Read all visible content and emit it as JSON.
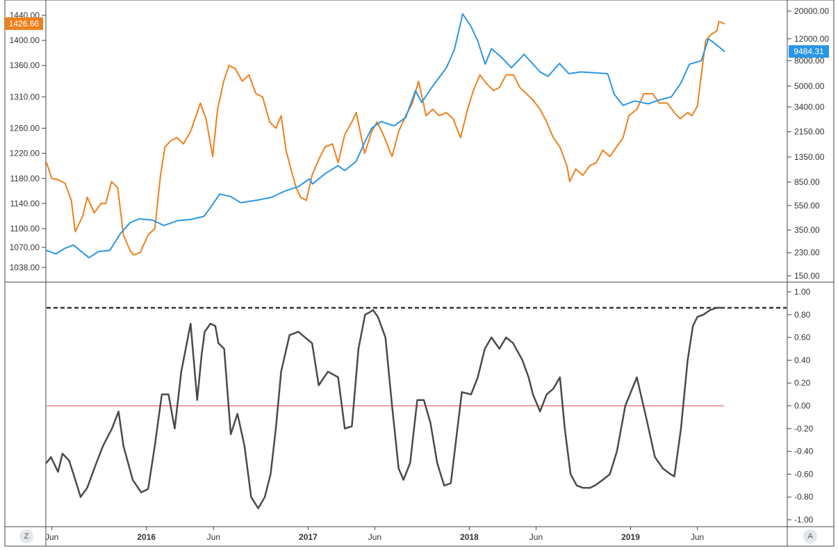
{
  "colors": {
    "gold": "#ef7f1a",
    "btc": "#2a96e6",
    "correlation": "#4a4a4a",
    "zero_line": "#f08080",
    "grid_border": "#444444"
  },
  "chart_data": [
    {
      "type": "line",
      "name": "price-panel",
      "x_axis": {
        "ticks": [
          "Jun",
          "2016",
          "Jun",
          "2017",
          "Jun",
          "2018",
          "Jun",
          "2019",
          "Jun"
        ],
        "tick_dates": [
          "2015-06-01",
          "2016-01-01",
          "2016-06-01",
          "2017-01-01",
          "2017-06-01",
          "2018-01-01",
          "2018-06-01",
          "2019-01-01",
          "2019-06-01"
        ],
        "range": [
          "2015-05-20",
          "2019-12-20"
        ]
      },
      "left_axis": {
        "ticks": [
          "1038.00",
          "1070.00",
          "1100.00",
          "1140.00",
          "1180.00",
          "1220.00",
          "1260.00",
          "1310.00",
          "1360.00",
          "1400.00",
          "1440.00"
        ],
        "tick_values": [
          1038,
          1070,
          1100,
          1140,
          1180,
          1220,
          1260,
          1310,
          1360,
          1400,
          1440
        ],
        "last_value_label": "1426.66"
      },
      "right_axis": {
        "scale": "log",
        "ticks": [
          "150.00",
          "230.00",
          "350.00",
          "550.00",
          "850.00",
          "1350.00",
          "2150.00",
          "3400.00",
          "5000.00",
          "8000.00",
          "12000.00",
          "20000.00"
        ],
        "tick_values": [
          150,
          230,
          350,
          550,
          850,
          1350,
          2150,
          3400,
          5000,
          8000,
          12000,
          20000
        ],
        "last_value_label": "9484.31"
      },
      "series": [
        {
          "color": "#ef7f1a",
          "axis": "left",
          "x": [
            "2015-05-20",
            "2015-06-01",
            "2015-06-15",
            "2015-07-01",
            "2015-07-15",
            "2015-07-24",
            "2015-08-10",
            "2015-08-20",
            "2015-09-05",
            "2015-09-20",
            "2015-10-01",
            "2015-10-14",
            "2015-10-28",
            "2015-11-10",
            "2015-11-25",
            "2015-12-03",
            "2015-12-18",
            "2016-01-05",
            "2016-01-20",
            "2016-02-02",
            "2016-02-12",
            "2016-02-25",
            "2016-03-10",
            "2016-03-25",
            "2016-04-10",
            "2016-04-25",
            "2016-05-02",
            "2016-05-15",
            "2016-05-30",
            "2016-06-10",
            "2016-06-24",
            "2016-07-06",
            "2016-07-20",
            "2016-08-05",
            "2016-08-20",
            "2016-09-05",
            "2016-09-20",
            "2016-10-06",
            "2016-10-20",
            "2016-11-01",
            "2016-11-12",
            "2016-11-25",
            "2016-12-05",
            "2016-12-15",
            "2016-12-28",
            "2017-01-10",
            "2017-01-25",
            "2017-02-08",
            "2017-02-25",
            "2017-03-10",
            "2017-03-25",
            "2017-04-10",
            "2017-04-20",
            "2017-05-09",
            "2017-05-25",
            "2017-06-06",
            "2017-06-20",
            "2017-07-10",
            "2017-07-25",
            "2017-08-10",
            "2017-08-25",
            "2017-09-08",
            "2017-09-25",
            "2017-10-10",
            "2017-10-25",
            "2017-11-10",
            "2017-11-25",
            "2017-12-12",
            "2017-12-28",
            "2018-01-10",
            "2018-01-25",
            "2018-02-10",
            "2018-02-25",
            "2018-03-10",
            "2018-03-25",
            "2018-04-11",
            "2018-04-25",
            "2018-05-10",
            "2018-05-25",
            "2018-06-10",
            "2018-06-25",
            "2018-07-10",
            "2018-07-25",
            "2018-08-10",
            "2018-08-16",
            "2018-08-30",
            "2018-09-15",
            "2018-09-30",
            "2018-10-15",
            "2018-10-30",
            "2018-11-15",
            "2018-11-30",
            "2018-12-15",
            "2018-12-28",
            "2019-01-15",
            "2019-01-31",
            "2019-02-20",
            "2019-03-07",
            "2019-03-25",
            "2019-04-10",
            "2019-04-23",
            "2019-05-10",
            "2019-05-20",
            "2019-06-01",
            "2019-06-10",
            "2019-06-20",
            "2019-07-03",
            "2019-07-15",
            "2019-07-20",
            "2019-08-01"
          ],
          "y": [
            1205,
            1180,
            1178,
            1172,
            1145,
            1095,
            1120,
            1150,
            1125,
            1140,
            1140,
            1175,
            1165,
            1090,
            1065,
            1058,
            1062,
            1090,
            1100,
            1185,
            1230,
            1240,
            1245,
            1235,
            1255,
            1285,
            1300,
            1275,
            1215,
            1290,
            1335,
            1360,
            1355,
            1335,
            1345,
            1315,
            1310,
            1270,
            1260,
            1280,
            1225,
            1190,
            1165,
            1150,
            1145,
            1185,
            1210,
            1230,
            1235,
            1205,
            1250,
            1270,
            1285,
            1220,
            1255,
            1270,
            1250,
            1215,
            1255,
            1280,
            1300,
            1335,
            1280,
            1290,
            1280,
            1285,
            1275,
            1245,
            1290,
            1320,
            1345,
            1330,
            1320,
            1325,
            1345,
            1345,
            1325,
            1315,
            1305,
            1290,
            1270,
            1245,
            1230,
            1200,
            1175,
            1195,
            1185,
            1200,
            1205,
            1225,
            1215,
            1230,
            1245,
            1280,
            1290,
            1315,
            1315,
            1300,
            1300,
            1285,
            1275,
            1285,
            1280,
            1295,
            1345,
            1400,
            1410,
            1415,
            1430,
            1426.66
          ]
        },
        {
          "color": "#2a96e6",
          "axis": "right",
          "x": [
            "2015-05-20",
            "2015-06-10",
            "2015-07-01",
            "2015-07-20",
            "2015-08-10",
            "2015-08-24",
            "2015-09-15",
            "2015-10-10",
            "2015-11-04",
            "2015-11-25",
            "2015-12-15",
            "2016-01-15",
            "2016-02-10",
            "2016-03-10",
            "2016-04-10",
            "2016-05-10",
            "2016-05-25",
            "2016-06-15",
            "2016-07-10",
            "2016-08-01",
            "2016-08-15",
            "2016-09-10",
            "2016-10-10",
            "2016-11-10",
            "2016-12-10",
            "2017-01-04",
            "2017-01-11",
            "2017-02-10",
            "2017-03-10",
            "2017-03-25",
            "2017-04-20",
            "2017-05-10",
            "2017-05-25",
            "2017-06-15",
            "2017-07-15",
            "2017-08-10",
            "2017-09-01",
            "2017-09-15",
            "2017-10-10",
            "2017-11-10",
            "2017-11-28",
            "2017-12-17",
            "2018-01-05",
            "2018-01-20",
            "2018-02-06",
            "2018-02-20",
            "2018-03-15",
            "2018-04-06",
            "2018-05-05",
            "2018-06-10",
            "2018-06-28",
            "2018-07-24",
            "2018-08-14",
            "2018-09-10",
            "2018-10-10",
            "2018-11-10",
            "2018-11-25",
            "2018-12-15",
            "2019-01-10",
            "2019-02-10",
            "2019-03-10",
            "2019-04-03",
            "2019-04-25",
            "2019-05-14",
            "2019-06-10",
            "2019-06-26",
            "2019-07-10",
            "2019-07-25",
            "2019-08-01"
          ],
          "y": [
            240,
            225,
            250,
            265,
            230,
            210,
            235,
            240,
            330,
            400,
            430,
            420,
            380,
            415,
            425,
            450,
            530,
            680,
            650,
            580,
            590,
            610,
            640,
            720,
            780,
            900,
            820,
            1000,
            1150,
            1050,
            1250,
            1800,
            2300,
            2600,
            2400,
            2800,
            4600,
            3700,
            5000,
            7000,
            9800,
            19000,
            15000,
            11500,
            7500,
            10000,
            8500,
            7000,
            9000,
            6500,
            6000,
            7600,
            6300,
            6500,
            6400,
            6300,
            4300,
            3500,
            3800,
            3600,
            3900,
            4100,
            5300,
            7500,
            8000,
            12000,
            11000,
            10000,
            9484.31
          ]
        }
      ]
    },
    {
      "type": "line",
      "name": "correlation-panel",
      "y_axis": {
        "ticks": [
          "-1.00",
          "-0.80",
          "-0.60",
          "-0.40",
          "-0.20",
          "0.00",
          "0.20",
          "0.40",
          "0.60",
          "0.80",
          "1.00"
        ],
        "tick_values": [
          -1,
          -0.8,
          -0.6,
          -0.4,
          -0.2,
          0,
          0.2,
          0.4,
          0.6,
          0.8,
          1
        ],
        "range": [
          -1.05,
          1.05
        ]
      },
      "reference_lines": [
        {
          "y": 0.0,
          "style": "solid",
          "color": "#f08080"
        },
        {
          "y": 0.86,
          "style": "dashed",
          "color": "#333333"
        }
      ],
      "series": [
        {
          "color": "#4a4a4a",
          "x": [
            "2015-05-20",
            "2015-05-30",
            "2015-06-15",
            "2015-06-25",
            "2015-07-10",
            "2015-07-20",
            "2015-08-05",
            "2015-08-20",
            "2015-09-10",
            "2015-09-25",
            "2015-10-15",
            "2015-10-30",
            "2015-11-10",
            "2015-12-01",
            "2015-12-20",
            "2016-01-05",
            "2016-01-20",
            "2016-02-05",
            "2016-02-20",
            "2016-03-05",
            "2016-03-20",
            "2016-04-10",
            "2016-04-25",
            "2016-05-05",
            "2016-05-12",
            "2016-05-25",
            "2016-06-05",
            "2016-06-12",
            "2016-06-25",
            "2016-07-10",
            "2016-07-25",
            "2016-08-10",
            "2016-08-25",
            "2016-09-10",
            "2016-09-25",
            "2016-10-08",
            "2016-10-20",
            "2016-11-01",
            "2016-11-20",
            "2016-12-10",
            "2016-12-25",
            "2017-01-10",
            "2017-01-25",
            "2017-02-15",
            "2017-03-10",
            "2017-03-25",
            "2017-04-10",
            "2017-04-25",
            "2017-05-10",
            "2017-05-20",
            "2017-05-28",
            "2017-06-08",
            "2017-06-25",
            "2017-07-10",
            "2017-07-25",
            "2017-08-05",
            "2017-08-20",
            "2017-09-05",
            "2017-09-20",
            "2017-10-05",
            "2017-10-20",
            "2017-11-05",
            "2017-11-20",
            "2017-12-05",
            "2017-12-15",
            "2018-01-05",
            "2018-01-20",
            "2018-02-05",
            "2018-02-20",
            "2018-03-10",
            "2018-03-25",
            "2018-04-10",
            "2018-05-01",
            "2018-05-15",
            "2018-05-25",
            "2018-06-10",
            "2018-06-25",
            "2018-07-10",
            "2018-07-25",
            "2018-08-05",
            "2018-08-18",
            "2018-09-01",
            "2018-09-15",
            "2018-10-01",
            "2018-10-12",
            "2018-10-30",
            "2018-11-15",
            "2018-12-01",
            "2018-12-20",
            "2019-01-15",
            "2019-02-05",
            "2019-02-25",
            "2019-03-15",
            "2019-04-01",
            "2019-04-10",
            "2019-04-25",
            "2019-05-10",
            "2019-05-22",
            "2019-06-01",
            "2019-06-15",
            "2019-06-30",
            "2019-07-15",
            "2019-08-01"
          ],
          "y": [
            -0.5,
            -0.45,
            -0.58,
            -0.42,
            -0.48,
            -0.6,
            -0.8,
            -0.72,
            -0.5,
            -0.35,
            -0.2,
            -0.05,
            -0.35,
            -0.65,
            -0.76,
            -0.73,
            -0.35,
            0.1,
            0.1,
            -0.2,
            0.3,
            0.72,
            0.05,
            0.45,
            0.65,
            0.72,
            0.7,
            0.55,
            0.5,
            -0.25,
            -0.07,
            -0.35,
            -0.8,
            -0.9,
            -0.8,
            -0.6,
            -0.2,
            0.3,
            0.62,
            0.65,
            0.6,
            0.55,
            0.18,
            0.3,
            0.25,
            -0.2,
            -0.18,
            0.5,
            0.8,
            0.82,
            0.84,
            0.78,
            0.6,
            0.0,
            -0.55,
            -0.65,
            -0.5,
            0.05,
            0.05,
            -0.15,
            -0.5,
            -0.7,
            -0.68,
            -0.2,
            0.12,
            0.1,
            0.25,
            0.5,
            0.6,
            0.5,
            0.6,
            0.55,
            0.4,
            0.25,
            0.1,
            -0.05,
            0.1,
            0.15,
            0.25,
            -0.2,
            -0.6,
            -0.7,
            -0.72,
            -0.72,
            -0.7,
            -0.65,
            -0.6,
            -0.4,
            0.0,
            0.25,
            -0.1,
            -0.45,
            -0.55,
            -0.6,
            -0.62,
            -0.2,
            0.4,
            0.7,
            0.78,
            0.8,
            0.84,
            0.86,
            0.86
          ]
        }
      ]
    }
  ],
  "controls": {
    "left_corner": "Z",
    "right_corner": "A"
  }
}
